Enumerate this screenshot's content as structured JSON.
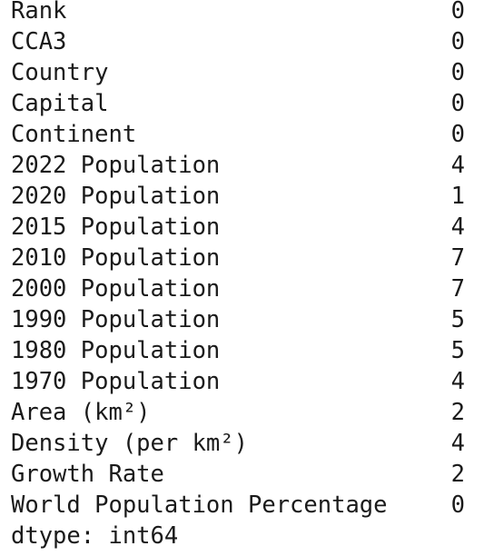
{
  "output": {
    "rows": [
      {
        "label": "Rank",
        "value": 0
      },
      {
        "label": "CCA3",
        "value": 0
      },
      {
        "label": "Country",
        "value": 0
      },
      {
        "label": "Capital",
        "value": 0
      },
      {
        "label": "Continent",
        "value": 0
      },
      {
        "label": "2022 Population",
        "value": 4
      },
      {
        "label": "2020 Population",
        "value": 1
      },
      {
        "label": "2015 Population",
        "value": 4
      },
      {
        "label": "2010 Population",
        "value": 7
      },
      {
        "label": "2000 Population",
        "value": 7
      },
      {
        "label": "1990 Population",
        "value": 5
      },
      {
        "label": "1980 Population",
        "value": 5
      },
      {
        "label": "1970 Population",
        "value": 4
      },
      {
        "label": "Area (km²)",
        "value": 2
      },
      {
        "label": "Density (per km²)",
        "value": 4
      },
      {
        "label": "Growth Rate",
        "value": 2
      },
      {
        "label": "World Population Percentage",
        "value": 0
      }
    ],
    "dtype": "dtype: int64"
  }
}
